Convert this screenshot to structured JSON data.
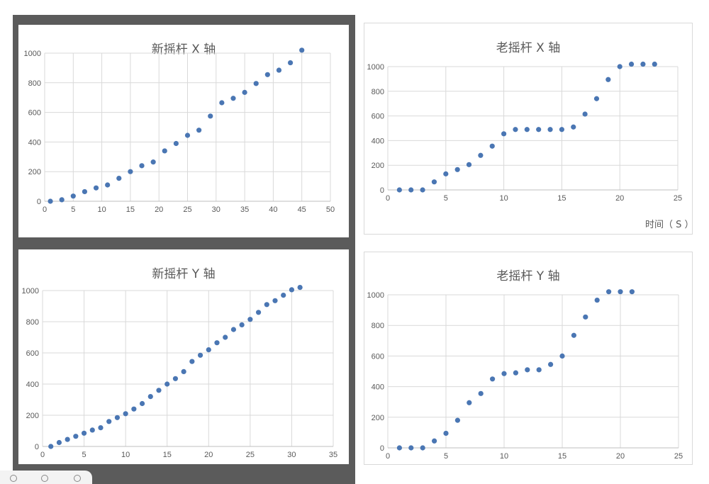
{
  "chart_data": [
    {
      "type": "scatter",
      "title": "新摇杆 X 轴",
      "xlabel": "",
      "ylabel": "",
      "xlim": [
        0,
        50
      ],
      "ylim": [
        0,
        1000
      ],
      "xticks": [
        "0",
        "5",
        "10",
        "15",
        "20",
        "25",
        "30",
        "35",
        "40",
        "45",
        "50"
      ],
      "yticks": [
        "0",
        "200",
        "400",
        "600",
        "800",
        "1000"
      ],
      "grid": true,
      "marker_color": "#4a76b3",
      "x": [
        1,
        3,
        5,
        7,
        9,
        11,
        13,
        15,
        17,
        19,
        21,
        23,
        25,
        27,
        29,
        31,
        33,
        35,
        37,
        39,
        41,
        43,
        45
      ],
      "y": [
        0,
        10,
        35,
        65,
        90,
        110,
        155,
        200,
        240,
        265,
        340,
        390,
        445,
        480,
        575,
        665,
        695,
        735,
        795,
        855,
        885,
        935,
        1020
      ]
    },
    {
      "type": "scatter",
      "title": "老摇杆 X 轴",
      "xlabel": "时间（ S ）",
      "ylabel": "",
      "xlim": [
        0,
        25
      ],
      "ylim": [
        0,
        1000
      ],
      "xticks": [
        "0",
        "5",
        "10",
        "15",
        "20",
        "25"
      ],
      "yticks": [
        "0",
        "200",
        "400",
        "600",
        "800",
        "1000"
      ],
      "grid": true,
      "marker_color": "#4a76b3",
      "x": [
        1,
        2,
        3,
        4,
        5,
        6,
        7,
        8,
        9,
        10,
        11,
        12,
        13,
        14,
        15,
        16,
        17,
        18,
        19,
        20,
        21,
        22,
        23
      ],
      "y": [
        0,
        0,
        0,
        65,
        130,
        165,
        205,
        280,
        355,
        455,
        490,
        490,
        490,
        490,
        490,
        510,
        615,
        740,
        895,
        1000,
        1020,
        1020,
        1020
      ]
    },
    {
      "type": "scatter",
      "title": "新摇杆 Y 轴",
      "xlabel": "",
      "ylabel": "",
      "xlim": [
        0,
        35
      ],
      "ylim": [
        0,
        1000
      ],
      "xticks": [
        "0",
        "5",
        "10",
        "15",
        "20",
        "25",
        "30",
        "35"
      ],
      "yticks": [
        "0",
        "200",
        "400",
        "600",
        "800",
        "1000"
      ],
      "grid": true,
      "marker_color": "#4a76b3",
      "x": [
        1,
        2,
        3,
        4,
        5,
        6,
        7,
        8,
        9,
        10,
        11,
        12,
        13,
        14,
        15,
        16,
        17,
        18,
        19,
        20,
        21,
        22,
        23,
        24,
        25,
        26,
        27,
        28,
        29,
        30,
        31
      ],
      "y": [
        0,
        25,
        45,
        65,
        85,
        105,
        120,
        160,
        185,
        210,
        240,
        275,
        320,
        360,
        400,
        435,
        480,
        545,
        585,
        620,
        665,
        700,
        750,
        780,
        815,
        860,
        910,
        935,
        970,
        1005,
        1020
      ]
    },
    {
      "type": "scatter",
      "title": "老摇杆 Y 轴",
      "xlabel": "",
      "ylabel": "",
      "xlim": [
        0,
        25
      ],
      "ylim": [
        0,
        1000
      ],
      "xticks": [
        "0",
        "5",
        "10",
        "15",
        "20",
        "25"
      ],
      "yticks": [
        "0",
        "200",
        "400",
        "600",
        "800",
        "1000"
      ],
      "grid": true,
      "marker_color": "#4a76b3",
      "x": [
        1,
        2,
        3,
        4,
        5,
        6,
        7,
        8,
        9,
        10,
        11,
        12,
        13,
        14,
        15,
        16,
        17,
        18,
        19,
        20,
        21
      ],
      "y": [
        0,
        0,
        0,
        45,
        95,
        180,
        295,
        355,
        450,
        485,
        490,
        510,
        510,
        545,
        600,
        735,
        855,
        965,
        1020,
        1020,
        1020
      ]
    }
  ]
}
